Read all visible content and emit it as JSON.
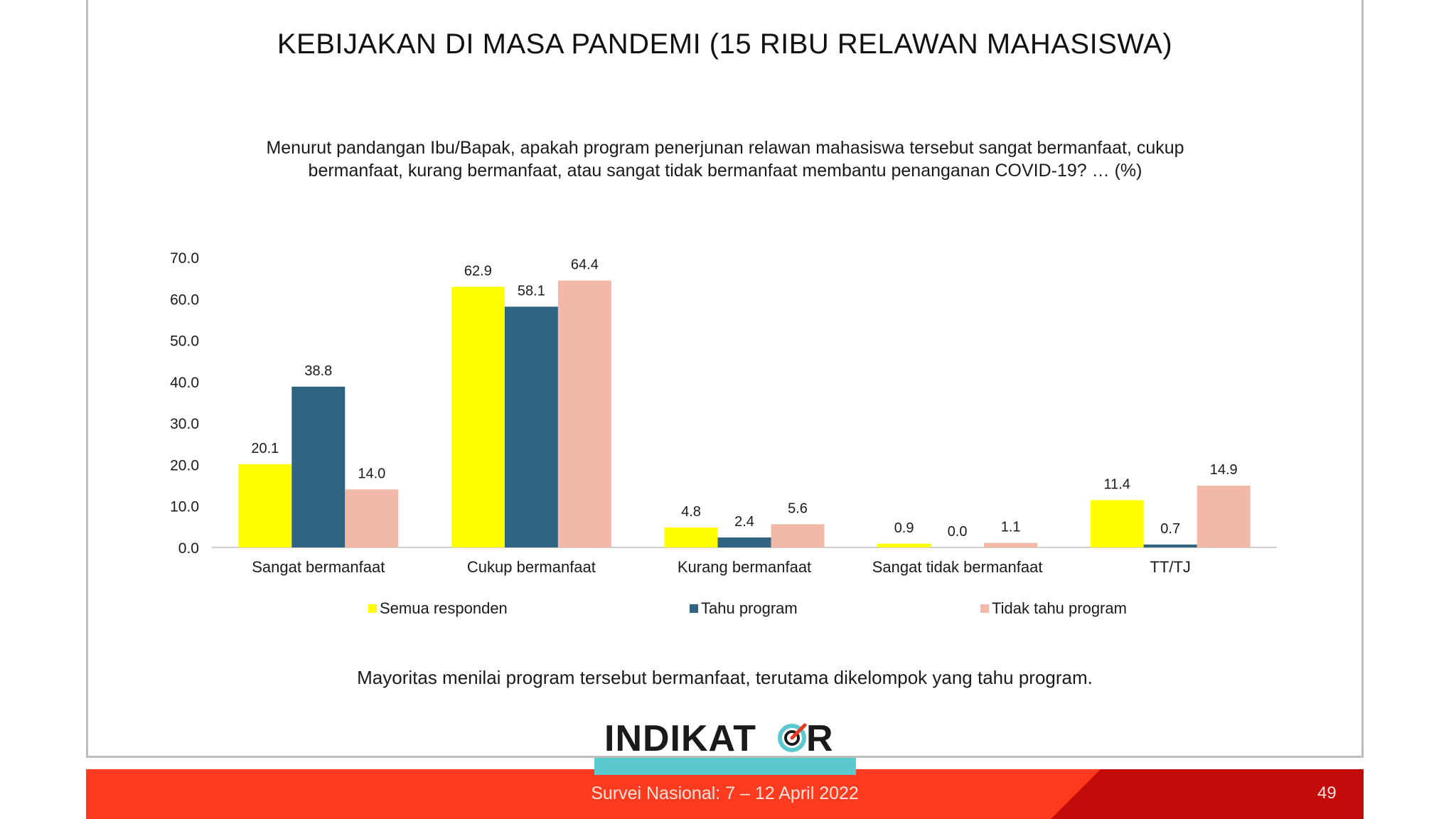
{
  "slide": {
    "title": "KEBIJAKAN DI MASA PANDEMI (15 RIBU RELAWAN MAHASISWA)",
    "question_line1": "Menurut pandangan Ibu/Bapak, apakah program penerjunan relawan mahasiswa tersebut sangat bermanfaat, cukup",
    "question_line2": "bermanfaat, kurang bermanfaat, atau sangat tidak bermanfaat membantu penanganan COVID-19? … (%)",
    "conclusion": "Mayoritas menilai program tersebut bermanfaat, terutama dikelompok yang tahu program.",
    "logo_text": "INDIKATOR",
    "footer_text": "Survei Nasional: 7 – 12 April 2022",
    "page_number": "49"
  },
  "chart_data": {
    "type": "bar",
    "categories": [
      "Sangat bermanfaat",
      "Cukup bermanfaat",
      "Kurang bermanfaat",
      "Sangat tidak bermanfaat",
      "TT/TJ"
    ],
    "series": [
      {
        "name": "Semua responden",
        "color": "#ffff00",
        "values": [
          20.1,
          62.9,
          4.8,
          0.9,
          11.4
        ]
      },
      {
        "name": "Tahu program",
        "color": "#2f6381",
        "values": [
          38.8,
          58.1,
          2.4,
          0.0,
          0.7
        ]
      },
      {
        "name": "Tidak tahu program",
        "color": "#f2b8a8",
        "values": [
          14.0,
          64.4,
          5.6,
          1.1,
          14.9
        ]
      }
    ],
    "ylim": [
      0,
      70
    ],
    "yticks": [
      "0.0",
      "10.0",
      "20.0",
      "30.0",
      "40.0",
      "50.0",
      "60.0",
      "70.0"
    ],
    "grid": false,
    "legend": "bottom"
  }
}
